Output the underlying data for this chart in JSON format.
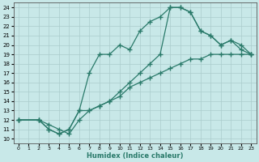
{
  "xlabel": "Humidex (Indice chaleur)",
  "xlim": [
    -0.5,
    23.5
  ],
  "ylim": [
    9.5,
    24.5
  ],
  "xticks": [
    0,
    1,
    2,
    3,
    4,
    5,
    6,
    7,
    8,
    9,
    10,
    11,
    12,
    13,
    14,
    15,
    16,
    17,
    18,
    19,
    20,
    21,
    22,
    23
  ],
  "yticks": [
    10,
    11,
    12,
    13,
    14,
    15,
    16,
    17,
    18,
    19,
    20,
    21,
    22,
    23,
    24
  ],
  "bg_color": "#c8e8e8",
  "grid_color": "#aacccc",
  "line_color": "#2a7a6a",
  "line_width": 0.9,
  "marker": "+",
  "marker_size": 4.5,
  "marker_lw": 1.0,
  "curves": [
    {
      "x": [
        0,
        2,
        3,
        4,
        5,
        6,
        7,
        8,
        9,
        10,
        11,
        12,
        13,
        14,
        15,
        16,
        17,
        18,
        19,
        20,
        21,
        22,
        23
      ],
      "y": [
        12,
        12,
        11,
        10.5,
        11,
        13,
        17,
        19,
        19,
        20,
        19.5,
        21.5,
        22.5,
        23,
        24,
        24,
        23.5,
        21.5,
        21,
        20,
        20.5,
        20,
        19
      ]
    },
    {
      "x": [
        0,
        2,
        3,
        4,
        5,
        6,
        7,
        8,
        9,
        10,
        11,
        12,
        13,
        14,
        15,
        16,
        17,
        18,
        19,
        20,
        21,
        22,
        23
      ],
      "y": [
        12,
        12,
        11,
        10.5,
        11,
        13,
        13,
        13.5,
        14,
        15,
        16,
        17,
        18,
        19,
        24,
        24,
        23.5,
        21.5,
        21,
        20,
        20.5,
        19.5,
        19
      ]
    },
    {
      "x": [
        0,
        2,
        3,
        4,
        5,
        6,
        7,
        8,
        9,
        10,
        11,
        12,
        13,
        14,
        15,
        16,
        17,
        18,
        19,
        20,
        21,
        22,
        23
      ],
      "y": [
        12,
        12,
        11.5,
        11,
        10.5,
        12,
        13,
        13.5,
        14,
        14.5,
        15.5,
        16,
        16.5,
        17,
        17.5,
        18,
        18.5,
        18.5,
        19,
        19,
        19,
        19,
        19
      ]
    }
  ]
}
